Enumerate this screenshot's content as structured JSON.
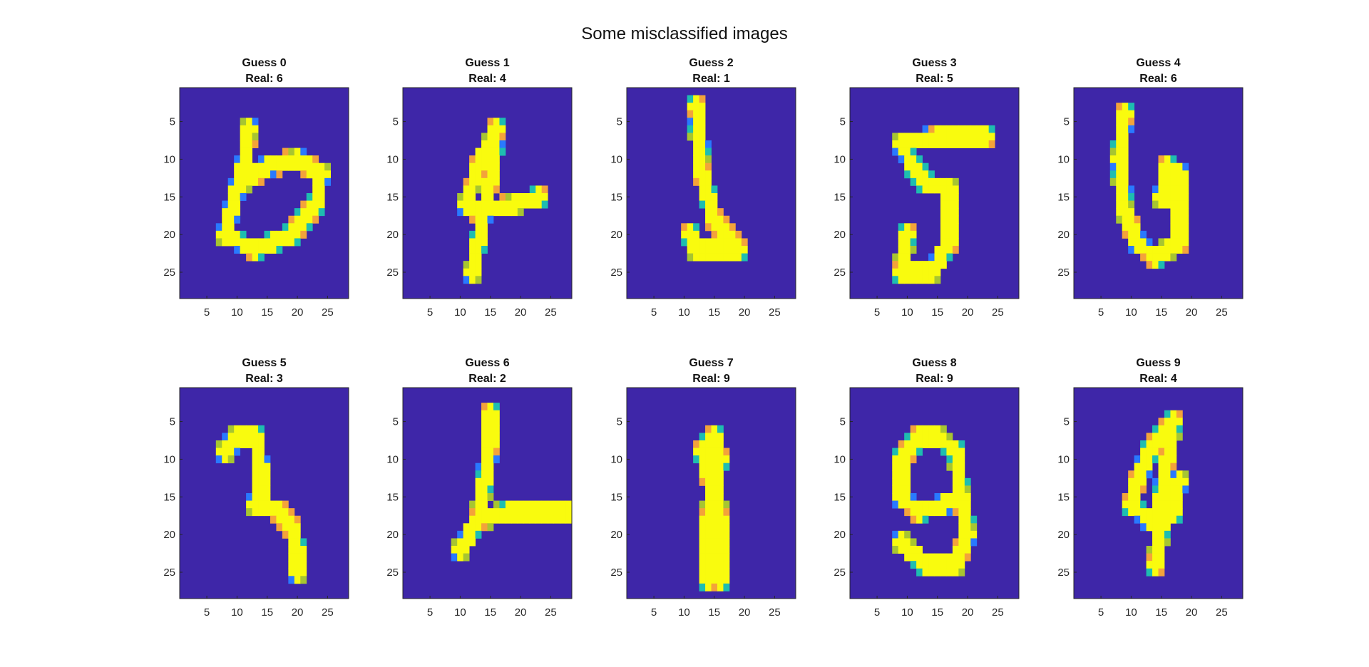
{
  "figure": {
    "title": "Some misclassified images"
  },
  "chart_data": {
    "type": "heatmap",
    "title": "Some misclassified images",
    "image_size": [
      28,
      28
    ],
    "ticks": [
      5,
      10,
      15,
      20,
      25
    ],
    "xlim": [
      0.5,
      28.5
    ],
    "ylim": [
      0.5,
      28.5
    ],
    "ydir": "reverse",
    "colormap": "parula",
    "color_stops": [
      "#3e26a8",
      "#2979ff",
      "#1ebdb0",
      "#a7c531",
      "#f3a33a",
      "#f9fb0e"
    ],
    "layout": {
      "rows": 2,
      "cols": 5
    },
    "panels": [
      {
        "guess": "Guess 0",
        "real": "Real: 6",
        "strokes": [
          [
            12,
            6,
            11,
            12
          ],
          [
            11,
            11,
            9,
            17
          ],
          [
            9,
            17,
            8,
            20
          ],
          [
            8,
            20,
            13,
            22
          ],
          [
            13,
            22,
            19,
            20
          ],
          [
            19,
            20,
            23,
            16
          ],
          [
            23,
            16,
            24,
            12
          ],
          [
            24,
            12,
            20,
            10
          ],
          [
            20,
            10,
            15,
            11
          ],
          [
            15,
            11,
            11,
            13
          ]
        ]
      },
      {
        "guess": "Guess 1",
        "real": "Real: 4",
        "strokes": [
          [
            16,
            6,
            13,
            11
          ],
          [
            13,
            11,
            11,
            16
          ],
          [
            11,
            16,
            13,
            17
          ],
          [
            13,
            17,
            19,
            16
          ],
          [
            19,
            16,
            23,
            15
          ],
          [
            16,
            6,
            15,
            13
          ],
          [
            15,
            13,
            14,
            17
          ],
          [
            14,
            17,
            12,
            25
          ]
        ]
      },
      {
        "guess": "Guess 2",
        "real": "Real: 1",
        "strokes": [
          [
            12,
            3,
            13,
            12
          ],
          [
            13,
            12,
            15,
            18
          ],
          [
            15,
            18,
            19,
            22
          ],
          [
            19,
            22,
            12,
            22
          ],
          [
            12,
            22,
            11,
            20
          ]
        ]
      },
      {
        "guess": "Guess 3",
        "real": "Real: 5",
        "strokes": [
          [
            23,
            7,
            15,
            7
          ],
          [
            15,
            7,
            9,
            8
          ],
          [
            9,
            8,
            11,
            11
          ],
          [
            11,
            11,
            13,
            13
          ],
          [
            13,
            13,
            17,
            14
          ],
          [
            17,
            14,
            17,
            21
          ],
          [
            17,
            21,
            14,
            25
          ],
          [
            14,
            25,
            9,
            25
          ],
          [
            9,
            25,
            10,
            20
          ]
        ]
      },
      {
        "guess": "Guess 4",
        "real": "Real: 6",
        "strokes": [
          [
            9,
            4,
            8,
            10
          ],
          [
            8,
            10,
            9,
            17
          ],
          [
            9,
            17,
            11,
            21
          ],
          [
            11,
            21,
            14,
            23
          ],
          [
            14,
            23,
            18,
            21
          ],
          [
            18,
            21,
            18,
            12
          ],
          [
            18,
            12,
            16,
            11
          ],
          [
            16,
            11,
            15,
            15
          ],
          [
            15,
            15,
            18,
            16
          ]
        ]
      },
      {
        "guess": "Guess 5",
        "real": "Real: 3",
        "strokes": [
          [
            8,
            9,
            10,
            7
          ],
          [
            10,
            7,
            13,
            7
          ],
          [
            13,
            7,
            14,
            11
          ],
          [
            14,
            11,
            14,
            15
          ],
          [
            14,
            15,
            13,
            16
          ],
          [
            13,
            16,
            17,
            17
          ],
          [
            17,
            17,
            19,
            19
          ],
          [
            19,
            19,
            20,
            22
          ],
          [
            20,
            22,
            20,
            25
          ]
        ]
      },
      {
        "guess": "Guess 6",
        "real": "Real: 2",
        "strokes": [
          [
            15,
            4,
            15,
            8
          ],
          [
            15,
            8,
            14,
            13
          ],
          [
            14,
            13,
            13,
            18
          ],
          [
            13,
            18,
            10,
            22
          ],
          [
            13,
            18,
            18,
            17
          ],
          [
            18,
            17,
            24,
            17
          ],
          [
            24,
            17,
            28,
            17
          ]
        ]
      },
      {
        "guess": "Guess 7",
        "real": "Real: 9",
        "strokes": [
          [
            15,
            7,
            13,
            9
          ],
          [
            13,
            9,
            14,
            12
          ],
          [
            14,
            12,
            16,
            10
          ],
          [
            16,
            10,
            15,
            7
          ],
          [
            15,
            12,
            14,
            18
          ],
          [
            14,
            18,
            14,
            26
          ],
          [
            15,
            12,
            16,
            18
          ],
          [
            16,
            18,
            16,
            26
          ]
        ]
      },
      {
        "guess": "Guess 8",
        "real": "Real: 9",
        "strokes": [
          [
            12,
            7,
            9,
            10
          ],
          [
            9,
            10,
            9,
            15
          ],
          [
            9,
            15,
            12,
            17
          ],
          [
            12,
            17,
            16,
            16
          ],
          [
            16,
            16,
            19,
            15
          ],
          [
            19,
            15,
            18,
            9
          ],
          [
            18,
            9,
            15,
            7
          ],
          [
            15,
            7,
            12,
            7
          ],
          [
            19,
            15,
            20,
            20
          ],
          [
            20,
            20,
            18,
            24
          ],
          [
            18,
            24,
            13,
            24
          ],
          [
            13,
            24,
            9,
            21
          ]
        ]
      },
      {
        "guess": "Guess 9",
        "real": "Real: 4",
        "strokes": [
          [
            17,
            5,
            13,
            9
          ],
          [
            13,
            9,
            11,
            13
          ],
          [
            11,
            13,
            10,
            16
          ],
          [
            10,
            16,
            13,
            18
          ],
          [
            13,
            18,
            17,
            17
          ],
          [
            17,
            17,
            18,
            13
          ],
          [
            17,
            5,
            16,
            10
          ],
          [
            16,
            10,
            15,
            15
          ],
          [
            15,
            15,
            15,
            19
          ],
          [
            15,
            19,
            14,
            24
          ]
        ]
      }
    ]
  }
}
